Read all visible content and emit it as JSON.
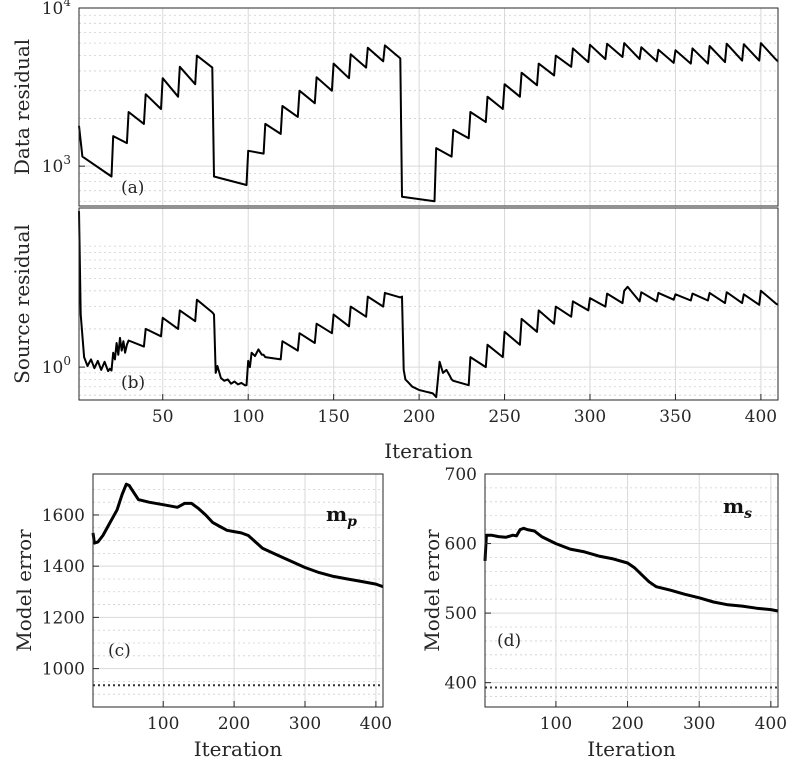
{
  "chart_data": [
    {
      "id": "a",
      "type": "line",
      "panel_label": "(a)",
      "ylabel": "Data residual",
      "xlabel": "",
      "yscale": "log",
      "xlim": [
        1,
        410
      ],
      "ylim": [
        560,
        10000
      ],
      "xticks": [],
      "yticks": [
        {
          "value": 1000,
          "base": "10",
          "exp": "3"
        },
        {
          "value": 10000,
          "base": "10",
          "exp": "4"
        }
      ],
      "x": [
        1,
        3,
        20,
        21,
        29,
        30,
        39,
        40,
        49,
        50,
        59,
        60,
        69,
        70,
        79,
        80,
        99,
        100,
        109,
        110,
        119,
        120,
        129,
        130,
        139,
        140,
        149,
        150,
        159,
        160,
        169,
        170,
        179,
        180,
        189,
        190,
        209,
        210,
        219,
        220,
        229,
        230,
        239,
        240,
        249,
        250,
        259,
        260,
        269,
        270,
        279,
        280,
        289,
        290,
        299,
        300,
        309,
        310,
        319,
        320,
        329,
        330,
        339,
        340,
        349,
        350,
        359,
        360,
        369,
        370,
        379,
        380,
        389,
        390,
        399,
        400,
        409,
        410
      ],
      "values": [
        1800,
        1150,
        860,
        1550,
        1400,
        2200,
        1850,
        2850,
        2300,
        3600,
        2750,
        4250,
        3300,
        5000,
        4200,
        860,
        760,
        1250,
        1200,
        1850,
        1600,
        2400,
        2050,
        3000,
        2500,
        3650,
        3000,
        4450,
        3600,
        5100,
        4200,
        5600,
        4600,
        5800,
        4800,
        640,
        600,
        1300,
        1150,
        1700,
        1500,
        2200,
        1900,
        2750,
        2300,
        3300,
        2750,
        3900,
        3250,
        4450,
        3750,
        5000,
        4250,
        5550,
        4550,
        5850,
        4750,
        5950,
        4900,
        6000,
        4750,
        5650,
        4600,
        5450,
        4500,
        5400,
        4450,
        5550,
        4450,
        5750,
        4550,
        5950,
        4650,
        5900,
        4650,
        6000,
        4700,
        4600
      ]
    },
    {
      "id": "b",
      "type": "line",
      "panel_label": "(b)",
      "ylabel": "Source residual",
      "xlabel": "Iteration",
      "yscale": "log",
      "xlim": [
        1,
        410
      ],
      "ylim": [
        0.55,
        18
      ],
      "xticks": [
        50,
        100,
        150,
        200,
        250,
        300,
        350,
        400
      ],
      "yticks": [
        {
          "value": 1,
          "base": "10",
          "exp": "0"
        }
      ],
      "x": [
        1,
        2,
        4,
        6,
        8,
        10,
        12,
        14,
        16,
        18,
        19,
        20,
        21,
        22,
        23,
        24,
        25,
        26,
        27,
        28,
        29,
        30,
        39,
        40,
        49,
        50,
        59,
        60,
        69,
        70,
        79,
        80,
        81,
        82,
        84,
        86,
        88,
        90,
        92,
        94,
        96,
        98,
        99,
        100,
        101,
        102,
        104,
        106,
        108,
        109,
        110,
        119,
        120,
        129,
        130,
        139,
        140,
        149,
        150,
        159,
        160,
        169,
        170,
        179,
        180,
        189,
        190,
        191,
        192,
        194,
        196,
        198,
        200,
        202,
        204,
        206,
        208,
        209,
        210,
        212,
        214,
        216,
        218,
        219,
        220,
        229,
        230,
        239,
        240,
        249,
        250,
        259,
        260,
        269,
        270,
        279,
        280,
        289,
        290,
        299,
        300,
        309,
        310,
        319,
        320,
        322,
        329,
        330,
        339,
        340,
        349,
        350,
        359,
        360,
        369,
        370,
        379,
        380,
        389,
        390,
        399,
        400,
        409,
        410
      ],
      "values": [
        17,
        2.6,
        1.2,
        1.02,
        1.15,
        0.98,
        1.12,
        0.95,
        1.1,
        0.93,
        0.97,
        0.94,
        1.3,
        1.15,
        1.55,
        1.25,
        1.7,
        1.35,
        1.6,
        1.3,
        1.5,
        1.62,
        1.45,
        2.0,
        1.75,
        2.45,
        2.0,
        2.8,
        2.3,
        3.4,
        2.7,
        2.6,
        0.9,
        1.02,
        0.82,
        0.78,
        0.8,
        0.74,
        0.77,
        0.73,
        0.75,
        0.72,
        0.72,
        1.12,
        1.0,
        1.3,
        1.22,
        1.38,
        1.25,
        1.25,
        1.2,
        1.15,
        1.6,
        1.35,
        1.85,
        1.55,
        2.2,
        1.85,
        2.6,
        2.1,
        3.0,
        2.5,
        3.6,
        3.0,
        3.85,
        3.55,
        3.6,
        0.95,
        0.8,
        0.75,
        0.7,
        0.68,
        0.66,
        0.65,
        0.64,
        0.63,
        0.62,
        0.6,
        0.58,
        1.1,
        0.9,
        0.95,
        0.85,
        0.8,
        0.78,
        0.72,
        1.2,
        1.0,
        1.5,
        1.2,
        1.9,
        1.5,
        2.4,
        1.9,
        2.8,
        2.2,
        3.0,
        2.5,
        3.3,
        2.8,
        3.5,
        3.0,
        3.8,
        3.2,
        4.0,
        4.3,
        3.3,
        3.9,
        3.3,
        3.85,
        3.4,
        3.75,
        3.35,
        3.8,
        3.35,
        3.85,
        3.2,
        3.9,
        3.2,
        3.75,
        3.1,
        4.0,
        3.15,
        3.1
      ]
    },
    {
      "id": "c",
      "type": "line",
      "panel_label": "(c)",
      "series_label_main": "m",
      "series_label_sub": "p",
      "ylabel": "Model error",
      "xlabel": "Iteration",
      "yscale": "linear",
      "xlim": [
        1,
        410
      ],
      "ylim": [
        850,
        1760
      ],
      "xticks": [
        100,
        200,
        300,
        400
      ],
      "yticks": [
        1000,
        1200,
        1400,
        1600
      ],
      "minor_yticks": [
        900,
        950,
        1050,
        1100,
        1150,
        1250,
        1300,
        1350,
        1450,
        1500,
        1550,
        1650,
        1700
      ],
      "x": [
        1,
        3,
        8,
        15,
        25,
        35,
        42,
        48,
        52,
        58,
        65,
        80,
        100,
        120,
        130,
        140,
        150,
        160,
        170,
        180,
        190,
        200,
        210,
        220,
        230,
        240,
        260,
        280,
        300,
        320,
        340,
        360,
        380,
        400,
        410
      ],
      "values": [
        1530,
        1490,
        1495,
        1520,
        1570,
        1620,
        1680,
        1720,
        1715,
        1690,
        1660,
        1650,
        1640,
        1630,
        1645,
        1645,
        1625,
        1600,
        1570,
        1555,
        1540,
        1535,
        1530,
        1520,
        1495,
        1470,
        1445,
        1420,
        1395,
        1375,
        1360,
        1350,
        1340,
        1330,
        1320
      ],
      "reference_line": {
        "value": 935,
        "style": "dotted"
      }
    },
    {
      "id": "d",
      "type": "line",
      "panel_label": "(d)",
      "series_label_main": "m",
      "series_label_sub": "s",
      "ylabel": "Model error",
      "xlabel": "Iteration",
      "yscale": "linear",
      "xlim": [
        1,
        410
      ],
      "ylim": [
        365,
        700
      ],
      "xticks": [
        100,
        200,
        300,
        400
      ],
      "yticks": [
        400,
        500,
        600,
        700
      ],
      "minor_yticks": [
        380,
        420,
        440,
        460,
        480,
        520,
        540,
        560,
        580,
        620,
        640,
        660,
        680
      ],
      "x": [
        1,
        3,
        10,
        20,
        30,
        40,
        45,
        50,
        55,
        60,
        70,
        80,
        100,
        120,
        140,
        160,
        180,
        200,
        210,
        220,
        230,
        240,
        260,
        280,
        300,
        320,
        340,
        360,
        380,
        400,
        410
      ],
      "values": [
        575,
        612,
        612,
        610,
        609,
        612,
        611,
        620,
        622,
        620,
        618,
        610,
        600,
        592,
        588,
        582,
        578,
        572,
        565,
        555,
        545,
        538,
        533,
        527,
        522,
        516,
        512,
        510,
        507,
        505,
        503
      ],
      "reference_line": {
        "value": 393,
        "style": "dotted"
      }
    }
  ]
}
